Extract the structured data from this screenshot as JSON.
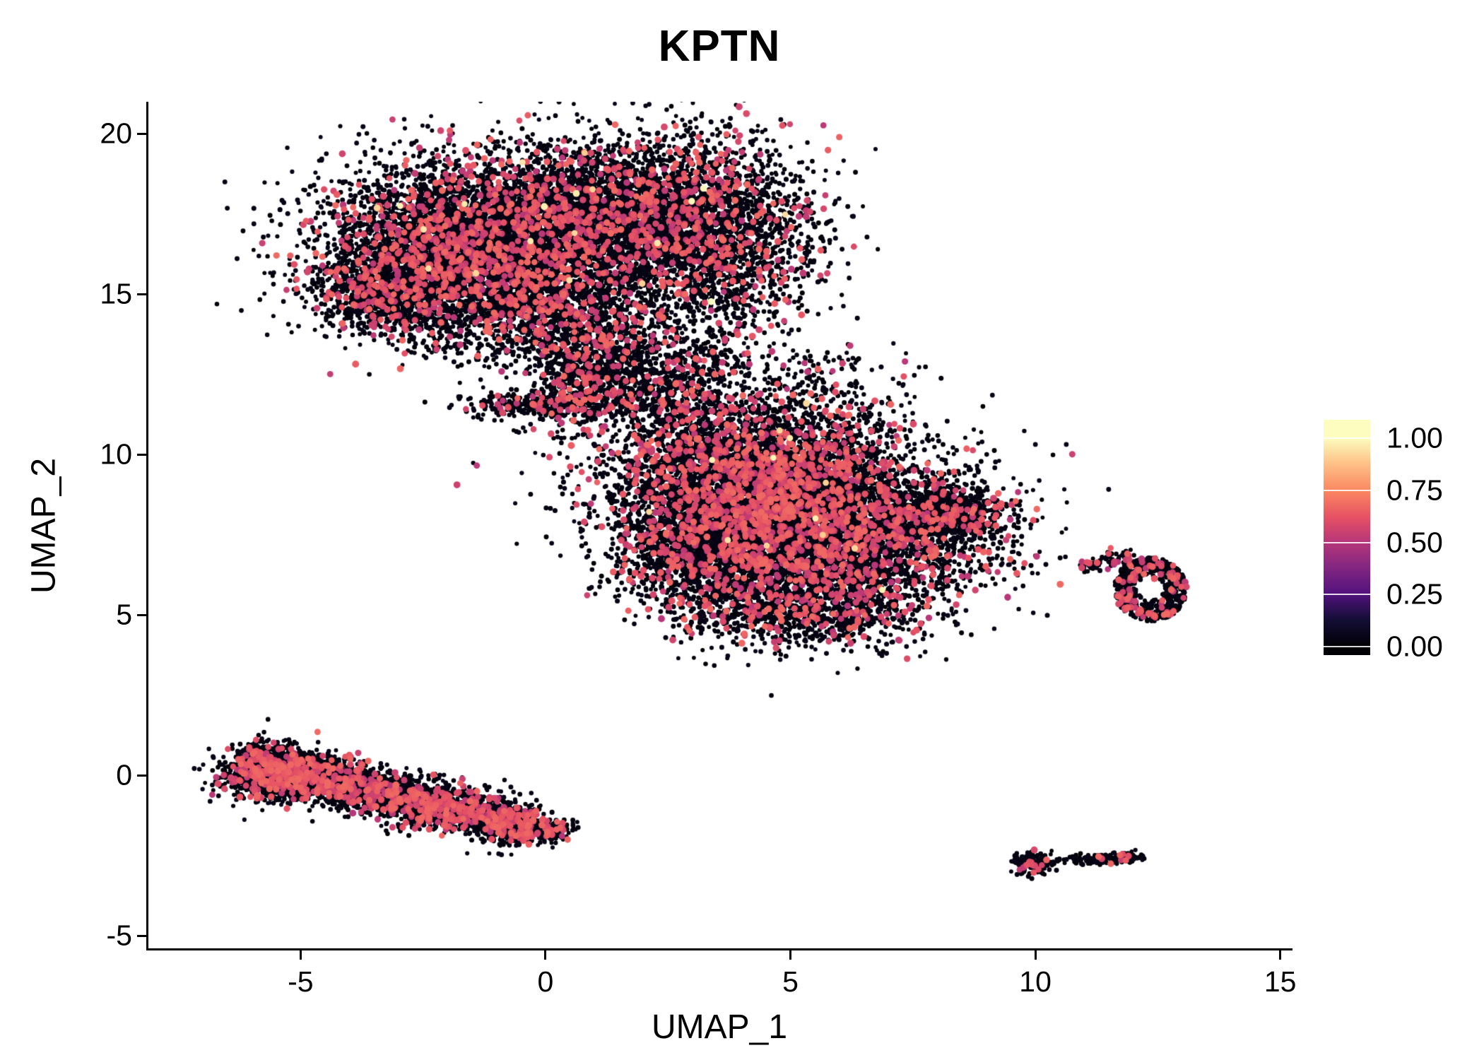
{
  "title": "KPTN",
  "chart_data": {
    "type": "scatter",
    "title": "KPTN",
    "xlabel": "UMAP_1",
    "ylabel": "UMAP_2",
    "xlim": [
      -8.15,
      15.25
    ],
    "ylim": [
      -5.46,
      21.0
    ],
    "x_ticks": [
      -5,
      0,
      5,
      10,
      15
    ],
    "y_ticks": [
      20,
      15,
      10,
      5,
      0,
      -5
    ],
    "grid": false,
    "background": "#ffffff",
    "axis_color": "#000000",
    "point_color_low": "#0b0723",
    "point_color_mid": "#e8537a",
    "point_color_high": "#fcfdbf",
    "legend": {
      "position": "right",
      "ticks": [
        "1.00",
        "0.75",
        "0.50",
        "0.25",
        "0.00"
      ],
      "tick_values": [
        1.0,
        0.75,
        0.5,
        0.25,
        0.0
      ],
      "range": [
        0,
        1
      ],
      "colormap": "magma",
      "stops": [
        [
          0.0,
          "#000004"
        ],
        [
          0.13,
          "#140e36"
        ],
        [
          0.25,
          "#51127c"
        ],
        [
          0.38,
          "#832681"
        ],
        [
          0.5,
          "#b63679"
        ],
        [
          0.62,
          "#e65164"
        ],
        [
          0.75,
          "#fb8861"
        ],
        [
          0.88,
          "#fec287"
        ],
        [
          1.0,
          "#fcfdbf"
        ]
      ]
    },
    "clusters": [
      {
        "shape": "gauss",
        "n": 5000,
        "cx": -1.7,
        "cy": 16.5,
        "sx": 1.45,
        "sy": 1.35,
        "pink": 0.13,
        "yellow": 0.0015
      },
      {
        "shape": "gauss",
        "n": 2500,
        "cx": 0.9,
        "cy": 17.4,
        "sx": 1.15,
        "sy": 1.15,
        "pink": 0.12,
        "yellow": 0.0015
      },
      {
        "shape": "gauss",
        "n": 3000,
        "cx": 3.2,
        "cy": 17.0,
        "sx": 1.15,
        "sy": 1.45,
        "pink": 0.12,
        "yellow": 0.0015
      },
      {
        "shape": "gauss",
        "n": 800,
        "cx": -3.1,
        "cy": 15.0,
        "sx": 0.75,
        "sy": 0.6,
        "pink": 0.12,
        "yellow": 0
      },
      {
        "shape": "gauss",
        "n": 900,
        "cx": -0.3,
        "cy": 14.6,
        "sx": 1.0,
        "sy": 0.7,
        "pink": 0.13,
        "yellow": 0
      },
      {
        "shape": "gauss",
        "n": 650,
        "cx": 0.7,
        "cy": 12.7,
        "sx": 0.55,
        "sy": 0.85,
        "pink": 0.15,
        "yellow": 0
      },
      {
        "shape": "gauss",
        "n": 450,
        "cx": 1.7,
        "cy": 13.0,
        "sx": 0.5,
        "sy": 0.9,
        "pink": 0.12,
        "yellow": 0
      },
      {
        "shape": "gauss",
        "n": 320,
        "cx": -0.15,
        "cy": 11.55,
        "sx": 0.8,
        "sy": 0.2,
        "pink": 0.15,
        "yellow": 0
      },
      {
        "shape": "gauss",
        "n": 300,
        "cx": 2.4,
        "cy": 11.9,
        "sx": 0.75,
        "sy": 0.6,
        "pink": 0.1,
        "yellow": 0
      },
      {
        "shape": "gauss",
        "n": 220,
        "cx": 3.3,
        "cy": 12.9,
        "sx": 0.6,
        "sy": 0.7,
        "pink": 0.1,
        "yellow": 0
      },
      {
        "shape": "gauss",
        "n": 70,
        "cx": 5.6,
        "cy": 12.7,
        "sx": 0.5,
        "sy": 0.5,
        "pink": 0.08,
        "yellow": 0
      },
      {
        "shape": "gauss",
        "n": 5000,
        "cx": 4.3,
        "cy": 9.4,
        "sx": 1.55,
        "sy": 1.3,
        "pink": 0.16,
        "yellow": 0.0015
      },
      {
        "shape": "gauss",
        "n": 4200,
        "cx": 5.8,
        "cy": 7.3,
        "sx": 1.6,
        "sy": 1.2,
        "pink": 0.16,
        "yellow": 0.0015
      },
      {
        "shape": "gauss",
        "n": 1500,
        "cx": 3.3,
        "cy": 7.1,
        "sx": 0.95,
        "sy": 1.0,
        "pink": 0.15,
        "yellow": 0
      },
      {
        "shape": "gauss",
        "n": 650,
        "cx": 8.2,
        "cy": 8.15,
        "sx": 0.65,
        "sy": 0.45,
        "pink": 0.1,
        "yellow": 0
      },
      {
        "shape": "gauss",
        "n": 800,
        "cx": 5.2,
        "cy": 5.1,
        "sx": 1.15,
        "sy": 0.55,
        "pink": 0.12,
        "yellow": 0
      },
      {
        "shape": "gauss",
        "n": 6,
        "cx": 6.9,
        "cy": 3.85,
        "sx": 0.08,
        "sy": 0.06,
        "pink": 0,
        "yellow": 0
      },
      {
        "shape": "ring",
        "n": 620,
        "cx": 12.35,
        "cy": 5.8,
        "rin": 0.3,
        "rout": 0.95,
        "ex": 0.78,
        "ey": 1.05,
        "pink": 0.13,
        "yellow": 0
      },
      {
        "shape": "gauss",
        "n": 40,
        "cx": 11.15,
        "cy": 6.55,
        "sx": 0.16,
        "sy": 0.1,
        "pink": 0.15,
        "yellow": 0
      },
      {
        "shape": "gauss",
        "n": 45,
        "cx": 11.65,
        "cy": 6.8,
        "sx": 0.2,
        "sy": 0.12,
        "pink": 0.1,
        "yellow": 0
      },
      {
        "shape": "line",
        "n": 3800,
        "x1": -6.25,
        "y1": 0.45,
        "x2": -0.3,
        "y2": -1.6,
        "w": 0.34,
        "pink": 0.18,
        "yellow": 0
      },
      {
        "shape": "gauss",
        "n": 900,
        "cx": -5.55,
        "cy": 0.05,
        "sx": 0.55,
        "sy": 0.42,
        "pink": 0.18,
        "yellow": 0
      },
      {
        "shape": "gauss",
        "n": 260,
        "cx": -0.05,
        "cy": -1.7,
        "sx": 0.3,
        "sy": 0.18,
        "pink": 0.15,
        "yellow": 0
      },
      {
        "shape": "gauss",
        "n": 170,
        "cx": 9.95,
        "cy": -2.75,
        "sx": 0.22,
        "sy": 0.17,
        "pink": 0.12,
        "yellow": 0
      },
      {
        "shape": "gauss",
        "n": 120,
        "cx": 11.3,
        "cy": -2.62,
        "sx": 0.3,
        "sy": 0.09,
        "pink": 0.03,
        "yellow": 0
      },
      {
        "shape": "gauss",
        "n": 80,
        "cx": 11.87,
        "cy": -2.57,
        "sx": 0.18,
        "sy": 0.08,
        "pink": 0.03,
        "yellow": 0
      },
      {
        "shape": "gauss",
        "n": 8,
        "cx": 10.55,
        "cy": -2.62,
        "sx": 0.05,
        "sy": 0.04,
        "pink": 0,
        "yellow": 0
      }
    ]
  }
}
